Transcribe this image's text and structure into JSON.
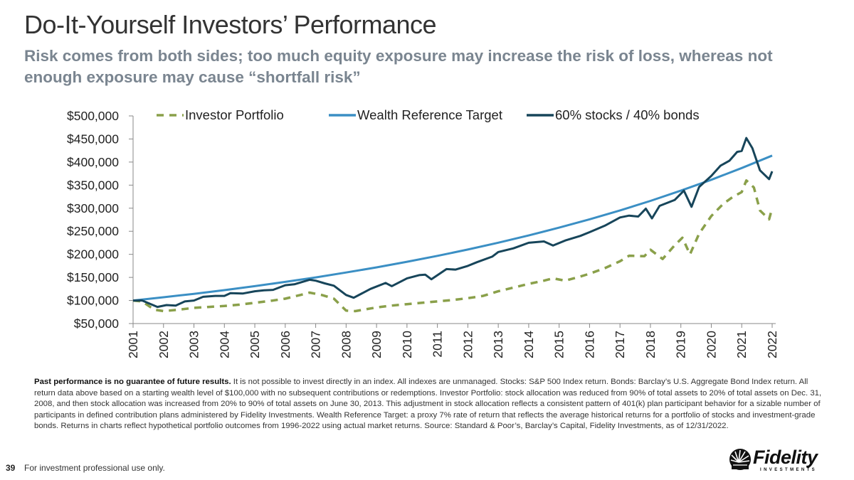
{
  "slide": {
    "title": "Do-It-Yourself Investors’ Performance",
    "subtitle": "Risk comes from both sides; too much equity exposure may increase the risk of loss, whereas not enough exposure may cause “shortfall risk”",
    "footnote_bold": "Past performance is no guarantee of future results.",
    "footnote_text": " It is not possible to invest directly in an index. All indexes are unmanaged. Stocks: S&P 500 Index return. Bonds: Barclay’s U.S. Aggregate Bond Index return. All return data above based on a starting wealth level of $100,000 with no subsequent contributions or redemptions. Investor Portfolio: stock allocation was reduced from 90% of total assets to 20% of total assets on Dec. 31, 2008, and then stock allocation was increased from 20% to 90% of total assets on June 30, 2013. This adjustment in stock allocation reflects a consistent pattern of 401(k) plan participant behavior for a sizable number of participants in defined contribution plans administered by Fidelity Investments. Wealth Reference Target: a proxy 7% rate of return that reflects the average historical returns for a portfolio of stocks and investment-grade bonds. Returns in charts reflect hypothetical portfolio outcomes from 1996-2022 using actual market returns. Source: Standard & Poor’s, Barclay’s Capital, Fidelity Investments, as of 12/31/2022.",
    "page_number": "39",
    "disclaimer": "For investment professional use only.",
    "logo_text": "Fidelity",
    "logo_subtext": "INVESTMENTS",
    "logo_icon": "fidelity-sunburst-icon"
  },
  "chart_data": {
    "type": "line",
    "title": "",
    "xlabel": "",
    "ylabel": "",
    "xlim": [
      2001,
      2022
    ],
    "ylim": [
      50000,
      500000
    ],
    "x_ticks": [
      "2001",
      "2002",
      "2003",
      "2004",
      "2005",
      "2006",
      "2007",
      "2008",
      "2009",
      "2010",
      "2011",
      "2012",
      "2013",
      "2014",
      "2015",
      "2016",
      "2017",
      "2018",
      "2019",
      "2020",
      "2021",
      "2022"
    ],
    "y_ticks": [
      {
        "value": 500000,
        "label": "$500,000"
      },
      {
        "value": 450000,
        "label": "$450,000"
      },
      {
        "value": 400000,
        "label": "$400,000"
      },
      {
        "value": 350000,
        "label": "$350,000"
      },
      {
        "value": 300000,
        "label": "$300,000"
      },
      {
        "value": 250000,
        "label": "$250,000"
      },
      {
        "value": 200000,
        "label": "$200,000"
      },
      {
        "value": 150000,
        "label": "$150,000"
      },
      {
        "value": 100000,
        "label": "$100,000"
      },
      {
        "value": 50000,
        "label": "$50,000"
      }
    ],
    "grid": false,
    "legend_position": "top",
    "series": [
      {
        "name": "Investor Portfolio",
        "color": "#8aa04a",
        "style": "dashed",
        "x": [
          2001,
          2001.3,
          2001.7,
          2002,
          2002.5,
          2003,
          2003.5,
          2004,
          2004.5,
          2005,
          2005.5,
          2006,
          2006.5,
          2006.8,
          2007.2,
          2007.6,
          2008,
          2008.3,
          2009,
          2009.5,
          2010,
          2010.5,
          2011,
          2011.5,
          2012,
          2012.5,
          2013,
          2013.5,
          2014,
          2014.5,
          2014.8,
          2015.2,
          2015.6,
          2016,
          2016.5,
          2017,
          2017.3,
          2017.8,
          2018,
          2018.4,
          2018.8,
          2019.05,
          2019.3,
          2019.6,
          2020,
          2020.4,
          2020.7,
          2021,
          2021.15,
          2021.4,
          2021.6,
          2021.9,
          2022
        ],
        "values": [
          100000,
          98000,
          80000,
          77000,
          80000,
          84000,
          86000,
          88000,
          91000,
          95000,
          99000,
          104000,
          112000,
          117000,
          112000,
          104000,
          78000,
          77000,
          85000,
          89000,
          92000,
          95000,
          98000,
          101000,
          105000,
          110000,
          120000,
          128000,
          136000,
          143000,
          148000,
          143000,
          150000,
          158000,
          170000,
          185000,
          197000,
          196000,
          210000,
          190000,
          220000,
          236000,
          200000,
          245000,
          283000,
          310000,
          324000,
          335000,
          360000,
          345000,
          295000,
          276000,
          300000
        ]
      },
      {
        "name": "Wealth Reference Target",
        "color": "#3b8fc4",
        "style": "solid",
        "rate": 0.07,
        "x": [
          2001,
          2002,
          2003,
          2004,
          2005,
          2006,
          2007,
          2008,
          2009,
          2010,
          2011,
          2012,
          2013,
          2014,
          2015,
          2016,
          2017,
          2018,
          2019,
          2020,
          2021,
          2022
        ],
        "values": [
          100000,
          107000,
          114490,
          122504,
          131080,
          140255,
          150073,
          160578,
          171819,
          183846,
          196715,
          210485,
          225219,
          240985,
          257853,
          275903,
          295216,
          315882,
          337993,
          361653,
          386968,
          414056
        ]
      },
      {
        "name": "60% stocks / 40% bonds",
        "color": "#17455a",
        "style": "solid",
        "x": [
          2001,
          2001.3,
          2001.8,
          2002.1,
          2002.4,
          2002.7,
          2003,
          2003.3,
          2003.7,
          2004,
          2004.2,
          2004.6,
          2005,
          2005.3,
          2005.6,
          2006,
          2006.3,
          2006.8,
          2007,
          2007.3,
          2007.6,
          2008,
          2008.25,
          2008.8,
          2009.3,
          2009.5,
          2010,
          2010.4,
          2010.6,
          2010.8,
          2011.3,
          2011.6,
          2012,
          2012.3,
          2012.8,
          2013,
          2013.5,
          2014,
          2014.5,
          2014.8,
          2015.2,
          2015.7,
          2016,
          2016.5,
          2017,
          2017.3,
          2017.6,
          2017.85,
          2018.05,
          2018.3,
          2018.8,
          2019.1,
          2019.35,
          2019.6,
          2020,
          2020.3,
          2020.6,
          2020.85,
          2021,
          2021.15,
          2021.35,
          2021.6,
          2021.9,
          2022
        ],
        "values": [
          100000,
          100000,
          86000,
          90000,
          89000,
          98000,
          100000,
          108000,
          110000,
          110000,
          116000,
          115000,
          120000,
          122000,
          123000,
          133000,
          135000,
          145000,
          143000,
          137000,
          132000,
          112000,
          106000,
          125000,
          138000,
          131000,
          148000,
          155000,
          156000,
          146000,
          168000,
          167000,
          175000,
          183000,
          195000,
          205000,
          213000,
          225000,
          228000,
          219000,
          230000,
          240000,
          248000,
          262000,
          280000,
          284000,
          282000,
          299000,
          278000,
          305000,
          318000,
          338000,
          303000,
          346000,
          370000,
          392000,
          403000,
          422000,
          424000,
          452000,
          430000,
          382000,
          363000,
          380000
        ]
      }
    ]
  }
}
